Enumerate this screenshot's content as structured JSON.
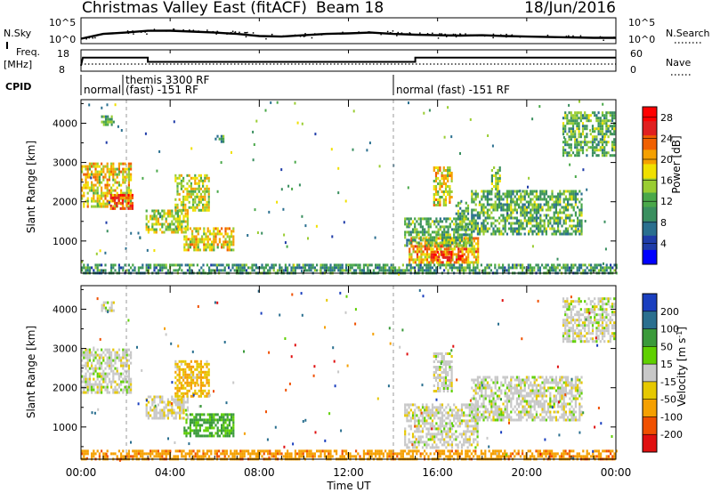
{
  "header": {
    "title": "Christmas Valley East (fitACF)",
    "beam": "Beam 18",
    "date": "18/Jun/2016"
  },
  "top_panels": {
    "nsky": {
      "label": "N.Sky",
      "ticks": [
        "10^5",
        "10^0"
      ],
      "right_label": "N.Search",
      "right_ticks": [
        "10^5",
        "10^0"
      ]
    },
    "freq": {
      "label_line1": "Freq.",
      "label_line2": "[MHz]",
      "ticks": [
        "18",
        "8"
      ],
      "right_label": "Nave",
      "right_ticks": [
        "60",
        "0"
      ]
    },
    "cpid": {
      "label": "CPID",
      "segments": [
        {
          "start": "00:00",
          "text": "normal"
        },
        {
          "start": "01:55",
          "text": "themis 3300 RF"
        },
        {
          "start": "01:55",
          "text": "(fast) -151 RF"
        },
        {
          "start": "14:00",
          "text": "normal (fast) -151 RF"
        }
      ]
    }
  },
  "chart_data": [
    {
      "type": "line",
      "panel": "N.Sky / N.Search",
      "ylabel": "N.Sky",
      "y2label": "N.Search",
      "x": [
        "00:00",
        "01:00",
        "02:00",
        "03:00",
        "04:00",
        "05:00",
        "06:00",
        "07:00",
        "08:00",
        "09:00",
        "10:00",
        "11:00",
        "12:00",
        "13:00",
        "14:00",
        "15:00",
        "16:00",
        "17:00",
        "18:00",
        "19:00",
        "20:00",
        "21:00",
        "22:00",
        "23:00",
        "24:00"
      ],
      "series": [
        {
          "name": "N.Sky",
          "values": [
            5,
            60,
            120,
            300,
            320,
            200,
            120,
            60,
            20,
            15,
            30,
            60,
            80,
            120,
            60,
            40,
            30,
            25,
            30,
            20,
            15,
            12,
            10,
            8,
            8
          ]
        }
      ]
    },
    {
      "type": "line",
      "panel": "Freq / Nave",
      "ylabel": "Freq. [MHz]",
      "y2label": "Nave",
      "ylim": [
        8,
        18
      ],
      "y2lim": [
        0,
        60
      ],
      "series": [
        {
          "name": "Freq.",
          "points": [
            [
              "00:00",
              10.5
            ],
            [
              "00:05",
              14.8
            ],
            [
              "03:00",
              14.8
            ],
            [
              "03:00",
              12.5
            ],
            [
              "15:00",
              12.5
            ],
            [
              "15:00",
              14.8
            ],
            [
              "24:00",
              14.8
            ]
          ]
        },
        {
          "name": "Nave",
          "points": [
            [
              "00:00",
              20
            ],
            [
              "24:00",
              20
            ]
          ]
        }
      ]
    },
    {
      "type": "heatmap",
      "panel": "Power",
      "xlabel": "Time UT",
      "ylabel": "Slant Range [km]",
      "xticks": [
        "00:00",
        "04:00",
        "08:00",
        "12:00",
        "16:00",
        "20:00",
        "00:00"
      ],
      "yticks": [
        1000,
        2000,
        3000,
        4000
      ],
      "xlim": [
        0,
        24
      ],
      "ylim": [
        180,
        4600
      ],
      "colorbar": {
        "label": "Power [dB]",
        "ticks": [
          4,
          8,
          12,
          16,
          20,
          24,
          28
        ],
        "range": [
          0,
          30
        ]
      },
      "regions": [
        {
          "t0": 0.0,
          "t1": 2.2,
          "r0": 1850,
          "r1": 3000,
          "value": 18
        },
        {
          "t0": 1.3,
          "t1": 2.3,
          "r0": 1800,
          "r1": 2200,
          "value": 24
        },
        {
          "t0": 0.9,
          "t1": 1.5,
          "r0": 3950,
          "r1": 4200,
          "value": 12
        },
        {
          "t0": 2.9,
          "t1": 4.8,
          "r0": 1200,
          "r1": 1800,
          "value": 16
        },
        {
          "t0": 4.2,
          "t1": 5.7,
          "r0": 1800,
          "r1": 2700,
          "value": 16
        },
        {
          "t0": 4.6,
          "t1": 6.8,
          "r0": 800,
          "r1": 1350,
          "value": 18
        },
        {
          "t0": 6.0,
          "t1": 6.4,
          "r0": 3550,
          "r1": 3700,
          "value": 10
        },
        {
          "t0": 14.7,
          "t1": 17.8,
          "r0": 450,
          "r1": 1100,
          "value": 20
        },
        {
          "t0": 15.7,
          "t1": 16.6,
          "r0": 500,
          "r1": 750,
          "value": 26
        },
        {
          "t0": 16.9,
          "t1": 17.3,
          "r0": 450,
          "r1": 650,
          "value": 26
        },
        {
          "t0": 14.5,
          "t1": 17.5,
          "r0": 900,
          "r1": 1600,
          "value": 12
        },
        {
          "t0": 15.8,
          "t1": 16.6,
          "r0": 1900,
          "r1": 2900,
          "value": 18
        },
        {
          "t0": 16.8,
          "t1": 17.4,
          "r0": 1300,
          "r1": 2000,
          "value": 12
        },
        {
          "t0": 17.5,
          "t1": 22.5,
          "r0": 1200,
          "r1": 2300,
          "value": 12
        },
        {
          "t0": 21.6,
          "t1": 23.9,
          "r0": 3200,
          "r1": 4300,
          "value": 12
        },
        {
          "t0": 18.4,
          "t1": 18.8,
          "r0": 2300,
          "r1": 2900,
          "value": 14
        },
        {
          "t0": 0.0,
          "t1": 24.0,
          "r0": 180,
          "r1": 420,
          "value": 10
        }
      ]
    },
    {
      "type": "heatmap",
      "panel": "Velocity",
      "xlabel": "Time UT",
      "ylabel": "Slant Range [km]",
      "xticks": [
        "00:00",
        "04:00",
        "08:00",
        "12:00",
        "16:00",
        "20:00",
        "00:00"
      ],
      "yticks": [
        1000,
        2000,
        3000,
        4000
      ],
      "xlim": [
        0,
        24
      ],
      "ylim": [
        180,
        4600
      ],
      "colorbar": {
        "label": "Velocity [m s^-1]",
        "ticks": [
          200,
          100,
          50,
          15,
          -15,
          -50,
          -100,
          -200
        ],
        "range": [
          -250,
          250
        ]
      },
      "regions": [
        {
          "t0": 0.0,
          "t1": 2.2,
          "r0": 1850,
          "r1": 3000,
          "value": 0
        },
        {
          "t0": 0.9,
          "t1": 1.5,
          "r0": 3950,
          "r1": 4200,
          "value": 0
        },
        {
          "t0": 2.9,
          "t1": 4.8,
          "r0": 1200,
          "r1": 1800,
          "value": -5
        },
        {
          "t0": 4.2,
          "t1": 5.7,
          "r0": 1800,
          "r1": 2700,
          "value": -30
        },
        {
          "t0": 4.6,
          "t1": 6.8,
          "r0": 800,
          "r1": 1350,
          "value": 40
        },
        {
          "t0": 14.5,
          "t1": 17.8,
          "r0": 450,
          "r1": 1600,
          "value": 0
        },
        {
          "t0": 15.8,
          "t1": 16.6,
          "r0": 1900,
          "r1": 2900,
          "value": 0
        },
        {
          "t0": 17.5,
          "t1": 22.5,
          "r0": 1200,
          "r1": 2300,
          "value": 0
        },
        {
          "t0": 21.6,
          "t1": 23.9,
          "r0": 3200,
          "r1": 4300,
          "value": 0
        },
        {
          "t0": 0.0,
          "t1": 24.0,
          "r0": 180,
          "r1": 420,
          "value": -60
        }
      ]
    }
  ]
}
